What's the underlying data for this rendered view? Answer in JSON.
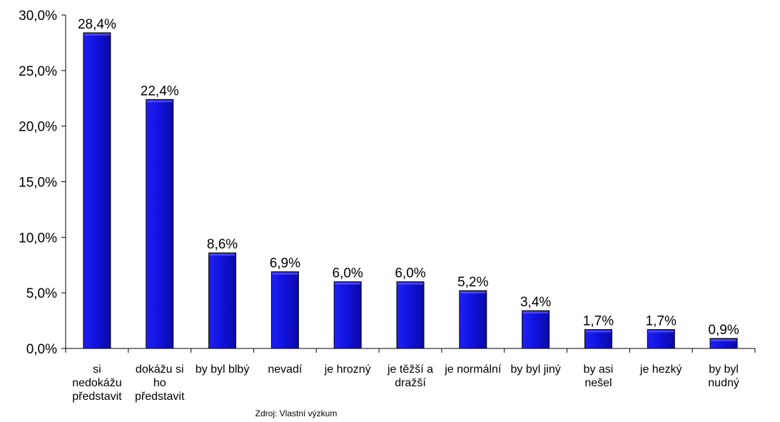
{
  "chart_data": {
    "type": "bar",
    "categories": [
      [
        "si",
        "nedokážu",
        "představit"
      ],
      [
        "dokážu si",
        "ho",
        "představit"
      ],
      [
        "by byl blbý"
      ],
      [
        "nevadí"
      ],
      [
        "je hrozný"
      ],
      [
        "je těžší a",
        "dražší"
      ],
      [
        "je normální"
      ],
      [
        "by byl jiný"
      ],
      [
        "by asi",
        "nešel"
      ],
      [
        "je hezký"
      ],
      [
        "by byl",
        "nudný"
      ]
    ],
    "values": [
      28.4,
      22.4,
      8.6,
      6.9,
      6.0,
      6.0,
      5.2,
      3.4,
      1.7,
      1.7,
      0.9
    ],
    "value_labels": [
      "28,4%",
      "22,4%",
      "8,6%",
      "6,9%",
      "6,0%",
      "6,0%",
      "5,2%",
      "3,4%",
      "1,7%",
      "1,7%",
      "0,9%"
    ],
    "y_ticks": [
      0,
      5,
      10,
      15,
      20,
      25,
      30
    ],
    "y_tick_labels": [
      "0,0%",
      "5,0%",
      "10,0%",
      "15,0%",
      "20,0%",
      "25,0%",
      "30,0%"
    ],
    "ylim": [
      0,
      30
    ],
    "grid": false,
    "legend": "none",
    "bar_color": "#1010e0",
    "bar_edge_color": "#000000",
    "source_note": "Zdroj: Vlastní výzkum"
  }
}
